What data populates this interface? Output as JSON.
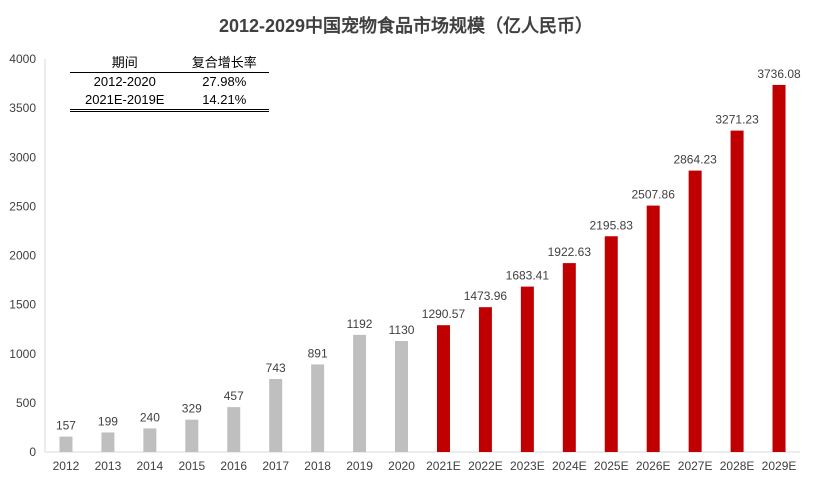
{
  "chart_data": {
    "type": "bar",
    "title": "2012-2029中国宠物食品市场规模（亿人民币）",
    "categories": [
      "2012",
      "2013",
      "2014",
      "2015",
      "2016",
      "2017",
      "2018",
      "2019",
      "2020",
      "2021E",
      "2022E",
      "2023E",
      "2024E",
      "2025E",
      "2026E",
      "2027E",
      "2028E",
      "2029E"
    ],
    "values": [
      157,
      199,
      240,
      329,
      457,
      743,
      891,
      1192,
      1130,
      1290.57,
      1473.96,
      1683.41,
      1922.63,
      2195.83,
      2507.86,
      2864.23,
      3271.23,
      3736.08
    ],
    "value_labels": [
      "157",
      "199",
      "240",
      "329",
      "457",
      "743",
      "891",
      "1192",
      "1130",
      "1290.57",
      "1473.96",
      "1683.41",
      "1922.63",
      "2195.83",
      "2507.86",
      "2864.23",
      "3271.23",
      "3736.08"
    ],
    "actual_color": "#bfbfbf",
    "forecast_color": "#c00000",
    "forecast_start_index": 9,
    "ylim": [
      0,
      4000
    ],
    "yticks": [
      0,
      500,
      1000,
      1500,
      2000,
      2500,
      3000,
      3500,
      4000
    ],
    "ytick_labels": [
      "0",
      "500",
      "1000",
      "1500",
      "2000",
      "2500",
      "3000",
      "3500",
      "4000"
    ],
    "xlabel": "",
    "ylabel": "",
    "grid": false,
    "legend": null
  },
  "growth_table": {
    "headers": [
      "期间",
      "复合增长率"
    ],
    "rows": [
      [
        "2012-2020",
        "27.98%"
      ],
      [
        "2021E-2019E",
        "14.21%"
      ]
    ]
  }
}
